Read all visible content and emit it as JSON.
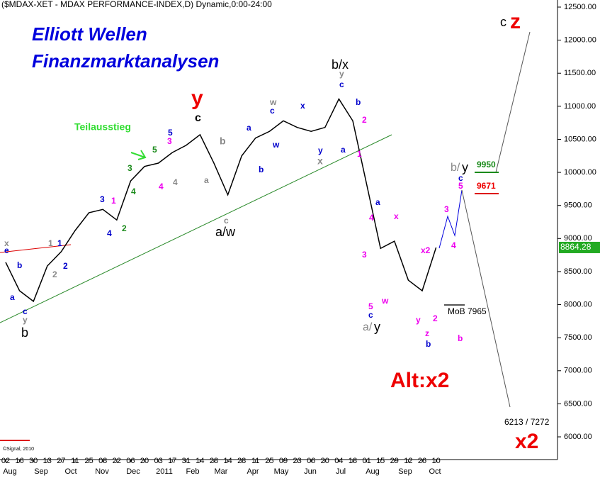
{
  "chart_data": {
    "type": "line",
    "title": "($MDAX-XET - MDAX PERFORMANCE-INDEX,D) Dynamic,0:00-24:00",
    "heading": [
      "Elliott Wellen",
      "Finanzmarktanalysen"
    ],
    "categories": [
      "02",
      "16",
      "30",
      "13",
      "27",
      "11",
      "25",
      "08",
      "22",
      "06",
      "20",
      "03",
      "17",
      "31",
      "14",
      "28",
      "14",
      "28",
      "11",
      "25",
      "09",
      "23",
      "06",
      "20",
      "04",
      "18",
      "01",
      "15",
      "29",
      "12",
      "26",
      "10"
    ],
    "months": [
      "Aug",
      "Sep",
      "Oct",
      "Nov",
      "Dec",
      "2011",
      "Feb",
      "Mar",
      "Apr",
      "May",
      "Jun",
      "Jul",
      "Aug",
      "Sep",
      "Oct"
    ],
    "series": [
      {
        "name": "MDAX",
        "color": "#000000",
        "values": [
          8640,
          8210,
          8050,
          8585,
          8800,
          9120,
          9390,
          9440,
          9280,
          9870,
          10090,
          10140,
          10300,
          10410,
          10570,
          10140,
          9660,
          10250,
          10520,
          10620,
          10780,
          10680,
          10620,
          10680,
          11110,
          10780,
          9820,
          8850,
          8960,
          8370,
          8210,
          8864.28
        ]
      }
    ],
    "last_price": 8864.28,
    "ylim": [
      5657,
      12607
    ],
    "yticks": [
      {
        "value": 6000,
        "label": "6000.00"
      },
      {
        "value": 6500,
        "label": "6500.00"
      },
      {
        "value": 7000,
        "label": "7000.00"
      },
      {
        "value": 7500,
        "label": "7500.00"
      },
      {
        "value": 8000,
        "label": "8000.00"
      },
      {
        "value": 8500,
        "label": "8500.00"
      },
      {
        "value": 9000,
        "label": "9000.00"
      },
      {
        "value": 9500,
        "label": "9500.00"
      },
      {
        "value": 10000,
        "label": "10000.00"
      },
      {
        "value": 10500,
        "label": "10500.00"
      },
      {
        "value": 11000,
        "label": "11000.00"
      },
      {
        "value": 11500,
        "label": "11500.00"
      },
      {
        "value": 12000,
        "label": "12000.00"
      },
      {
        "value": 12500,
        "label": "12500.00"
      }
    ],
    "annotations": [
      "Teilausstieg",
      "y",
      "c",
      "b/x",
      "a/w",
      "b",
      "a/",
      "y",
      "b/",
      "y",
      "c",
      "z",
      "Alt:x2",
      "x2",
      "MoB 7965",
      "9950",
      "9671",
      "6213 / 7272",
      "©Signal, 2010",
      "3",
      "4",
      "5",
      "1",
      "2",
      "3",
      "4",
      "x",
      "e",
      "c",
      "y",
      "a",
      "b",
      "w",
      "c",
      "w",
      "x",
      "y",
      "x",
      "a",
      "b",
      "2",
      "1",
      "c",
      "y",
      "3",
      "4",
      "a",
      "x",
      "w",
      "5",
      "c",
      "x2",
      "3",
      "4",
      "5",
      "c",
      "2",
      "y",
      "z",
      "b",
      "b",
      "3",
      "5",
      "4",
      "4",
      "a",
      "b",
      "c",
      "b",
      "a",
      "1",
      "1",
      "2",
      "2"
    ]
  }
}
